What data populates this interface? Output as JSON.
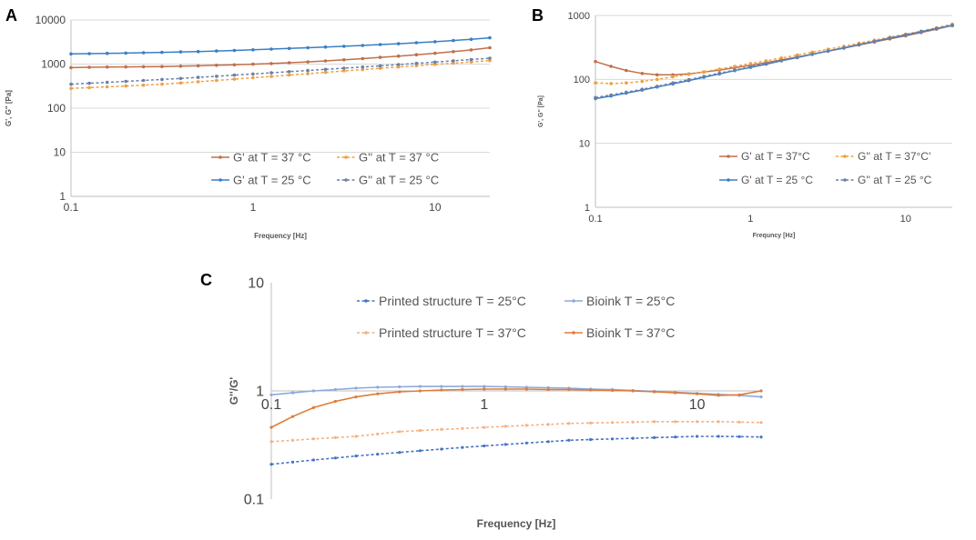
{
  "chart_data": [
    {
      "panel": "A",
      "type": "line",
      "xscale": "log",
      "yscale": "log",
      "xlim": [
        0.1,
        20
      ],
      "ylim": [
        1,
        10000
      ],
      "x_ticks": [
        "0.1",
        "1",
        "10"
      ],
      "y_ticks": [
        "1",
        "10",
        "100",
        "1000",
        "10000"
      ],
      "xlabel": "Frequency [Hz]",
      "ylabel": "G', G'' [Pa]",
      "x": [
        0.1,
        0.126,
        0.158,
        0.2,
        0.25,
        0.316,
        0.4,
        0.5,
        0.63,
        0.79,
        1.0,
        1.26,
        1.58,
        2.0,
        2.5,
        3.16,
        4.0,
        5.0,
        6.3,
        7.9,
        10.0,
        12.6,
        15.8,
        20.0
      ],
      "series": [
        {
          "name": "G' at T = 37 °C",
          "color": "#C0704A",
          "style": "solid",
          "values": [
            830,
            845,
            858,
            865,
            870,
            880,
            895,
            915,
            940,
            965,
            995,
            1030,
            1075,
            1120,
            1180,
            1250,
            1330,
            1420,
            1520,
            1630,
            1760,
            1920,
            2100,
            2350
          ]
        },
        {
          "name": "G'' at T = 37 °C",
          "color": "#F0A040",
          "style": "dashed",
          "values": [
            280,
            292,
            305,
            318,
            332,
            350,
            372,
            398,
            425,
            455,
            490,
            525,
            565,
            605,
            650,
            700,
            750,
            805,
            860,
            920,
            985,
            1050,
            1120,
            1200
          ]
        },
        {
          "name": "G' at T = 25 °C",
          "color": "#3A7FC4",
          "style": "solid",
          "values": [
            1700,
            1725,
            1750,
            1780,
            1810,
            1845,
            1885,
            1930,
            1980,
            2040,
            2110,
            2185,
            2265,
            2350,
            2440,
            2540,
            2650,
            2770,
            2900,
            3050,
            3220,
            3420,
            3650,
            3950
          ]
        },
        {
          "name": "G'' at T = 25 °C",
          "color": "#6B7FA8",
          "style": "dashed",
          "values": [
            350,
            368,
            386,
            405,
            425,
            448,
            472,
            500,
            530,
            562,
            597,
            634,
            673,
            715,
            760,
            808,
            860,
            915,
            975,
            1040,
            1110,
            1185,
            1265,
            1360
          ]
        }
      ],
      "legend": "lower-right"
    },
    {
      "panel": "B",
      "type": "line",
      "xscale": "log",
      "yscale": "log",
      "xlim": [
        0.1,
        20
      ],
      "ylim": [
        1,
        1000
      ],
      "x_ticks": [
        "0.1",
        "1",
        "10"
      ],
      "y_ticks": [
        "1",
        "10",
        "100",
        "1000"
      ],
      "xlabel": "Frequncy [Hz]",
      "ylabel": "G', G'' [Pa]",
      "x": [
        0.1,
        0.126,
        0.158,
        0.2,
        0.25,
        0.316,
        0.4,
        0.5,
        0.63,
        0.79,
        1.0,
        1.26,
        1.58,
        2.0,
        2.5,
        3.16,
        4.0,
        5.0,
        6.3,
        7.9,
        10.0,
        12.6,
        15.8,
        20.0
      ],
      "series": [
        {
          "name": "G' at T = 37°C",
          "color": "#C0704A",
          "style": "solid",
          "values": [
            190,
            160,
            138,
            124,
            118,
            118,
            122,
            130,
            140,
            152,
            167,
            183,
            202,
            224,
            248,
            276,
            308,
            345,
            385,
            430,
            480,
            540,
            610,
            700
          ]
        },
        {
          "name": "G'' at T = 37°C'",
          "color": "#F0A040",
          "style": "dashed",
          "values": [
            88,
            86,
            88,
            93,
            100,
            110,
            120,
            132,
            145,
            160,
            177,
            195,
            216,
            240,
            266,
            296,
            330,
            368,
            410,
            457,
            510,
            570,
            640,
            730
          ]
        },
        {
          "name": "G' at T = 25 °C",
          "color": "#3A7FC4",
          "style": "solid",
          "values": [
            50,
            55,
            61,
            68,
            76,
            85,
            96,
            108,
            122,
            137,
            154,
            173,
            195,
            219,
            246,
            277,
            311,
            350,
            393,
            442,
            497,
            558,
            627,
            705
          ]
        },
        {
          "name": "G'' at T = 25 °C",
          "color": "#6B7FA8",
          "style": "dashed",
          "values": [
            52,
            57,
            63,
            70,
            78,
            88,
            99,
            111,
            125,
            140,
            158,
            177,
            198,
            222,
            249,
            279,
            313,
            351,
            393,
            440,
            493,
            552,
            618,
            692
          ]
        }
      ],
      "legend": "lower-right"
    },
    {
      "panel": "C",
      "type": "line",
      "xscale": "log",
      "yscale": "log",
      "xlim": [
        0.1,
        20
      ],
      "ylim": [
        0.1,
        10
      ],
      "x_ticks": [
        "0.1",
        "1",
        "10"
      ],
      "y_ticks": [
        "0.1",
        "1",
        "10"
      ],
      "xlabel": "Frequency [Hz]",
      "ylabel": "G''/G'",
      "x": [
        0.1,
        0.126,
        0.158,
        0.2,
        0.25,
        0.316,
        0.4,
        0.5,
        0.63,
        0.79,
        1.0,
        1.26,
        1.58,
        2.0,
        2.5,
        3.16,
        4.0,
        5.0,
        6.3,
        7.9,
        10.0,
        12.6,
        15.8,
        20.0
      ],
      "series": [
        {
          "name": "Printed structure T = 25°C",
          "color": "#4472C4",
          "style": "dashed",
          "values": [
            0.21,
            0.22,
            0.23,
            0.24,
            0.25,
            0.26,
            0.27,
            0.28,
            0.29,
            0.3,
            0.31,
            0.32,
            0.33,
            0.34,
            0.35,
            0.355,
            0.36,
            0.365,
            0.37,
            0.375,
            0.38,
            0.38,
            0.378,
            0.375
          ]
        },
        {
          "name": "Bioink T = 25°C",
          "color": "#8EA9DB",
          "style": "solid",
          "values": [
            0.92,
            0.96,
            1.0,
            1.03,
            1.06,
            1.08,
            1.09,
            1.1,
            1.1,
            1.1,
            1.1,
            1.09,
            1.08,
            1.07,
            1.06,
            1.04,
            1.03,
            1.01,
            0.99,
            0.97,
            0.95,
            0.93,
            0.91,
            0.88
          ]
        },
        {
          "name": "Printed structure T = 37°C",
          "color": "#F4B183",
          "style": "dashed",
          "values": [
            0.34,
            0.35,
            0.36,
            0.37,
            0.38,
            0.4,
            0.42,
            0.43,
            0.44,
            0.45,
            0.46,
            0.47,
            0.48,
            0.49,
            0.5,
            0.505,
            0.51,
            0.515,
            0.52,
            0.52,
            0.52,
            0.52,
            0.515,
            0.51
          ]
        },
        {
          "name": "Bioink T = 37°C",
          "color": "#E07B39",
          "style": "solid",
          "values": [
            0.46,
            0.58,
            0.7,
            0.8,
            0.88,
            0.94,
            0.98,
            1.0,
            1.02,
            1.03,
            1.04,
            1.04,
            1.04,
            1.03,
            1.03,
            1.02,
            1.01,
            1.0,
            0.98,
            0.96,
            0.94,
            0.91,
            0.92,
            1.0
          ]
        }
      ],
      "legend": "top"
    }
  ]
}
